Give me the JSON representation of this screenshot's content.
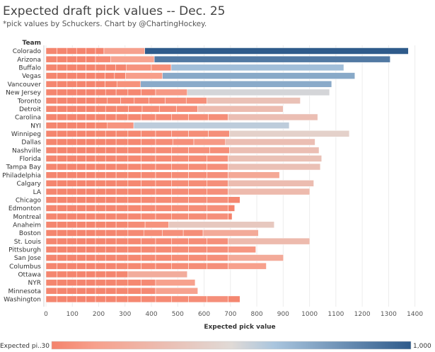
{
  "title": "Expected draft pick values -- Dec. 25",
  "subtitle": "*pick values by Schuckers. Chart by @ChartingHockey.",
  "chart_data": {
    "type": "bar",
    "orientation": "horizontal",
    "stacked": true,
    "row_header": "Team",
    "xlabel": "Expected pick value",
    "xlim": [
      0,
      1450
    ],
    "xticks": [
      0,
      100,
      200,
      300,
      400,
      500,
      600,
      700,
      800,
      900,
      1000,
      1100,
      1200,
      1300,
      1400
    ],
    "grid": true,
    "color_legend": {
      "label": "Expected pi..",
      "min_label": "30",
      "max_label": "1,000",
      "min": 30,
      "max": 1000,
      "colors": [
        "#f4836c",
        "#ddd8d5",
        "#2f5b8b"
      ]
    },
    "teams": [
      {
        "name": "Colorado",
        "segments": [
          42,
          38,
          36,
          36,
          36,
          32,
          155,
          1000
        ]
      },
      {
        "name": "Arizona",
        "segments": [
          42,
          38,
          36,
          36,
          36,
          58,
          165,
          895
        ]
      },
      {
        "name": "Buffalo",
        "segments": [
          42,
          38,
          36,
          36,
          36,
          38,
          38,
          40,
          96,
          75,
          655
        ]
      },
      {
        "name": "Vegas",
        "segments": [
          42,
          38,
          36,
          36,
          36,
          36,
          36,
          42,
          140,
          730
        ]
      },
      {
        "name": "Vancouver",
        "segments": [
          42,
          38,
          36,
          36,
          36,
          36,
          45,
          90,
          725
        ]
      },
      {
        "name": "New Jersey",
        "segments": [
          42,
          38,
          36,
          36,
          36,
          38,
          40,
          45,
          50,
          55,
          120,
          540
        ]
      },
      {
        "name": "Toronto",
        "segments": [
          42,
          38,
          36,
          36,
          36,
          45,
          50,
          52,
          55,
          62,
          80,
          78,
          355
        ]
      },
      {
        "name": "Detroit",
        "segments": [
          42,
          38,
          36,
          36,
          36,
          38,
          42,
          45,
          52,
          65,
          65,
          80,
          325
        ]
      },
      {
        "name": "Carolina",
        "segments": [
          42,
          38,
          36,
          36,
          36,
          38,
          40,
          45,
          50,
          55,
          60,
          65,
          75,
          75,
          340
        ]
      },
      {
        "name": "NYI",
        "segments": [
          42,
          38,
          36,
          36,
          36,
          45,
          100,
          590
        ]
      },
      {
        "name": "Winnipeg",
        "segments": [
          42,
          38,
          36,
          36,
          36,
          38,
          40,
          45,
          50,
          55,
          60,
          65,
          75,
          80,
          455
        ]
      },
      {
        "name": "Dallas",
        "segments": [
          42,
          38,
          36,
          36,
          36,
          38,
          40,
          45,
          50,
          55,
          65,
          80,
          120,
          340
        ]
      },
      {
        "name": "Nashville",
        "segments": [
          42,
          38,
          36,
          36,
          36,
          38,
          40,
          45,
          50,
          55,
          60,
          65,
          80,
          75,
          340
        ]
      },
      {
        "name": "Florida",
        "segments": [
          42,
          38,
          36,
          36,
          36,
          38,
          40,
          45,
          50,
          55,
          60,
          65,
          70,
          80,
          355
        ]
      },
      {
        "name": "Tampa Bay",
        "segments": [
          42,
          38,
          36,
          36,
          36,
          38,
          40,
          45,
          50,
          55,
          60,
          65,
          70,
          80,
          350
        ]
      },
      {
        "name": "Philadelphia",
        "segments": [
          42,
          38,
          36,
          36,
          36,
          38,
          40,
          45,
          50,
          55,
          60,
          65,
          70,
          80,
          195
        ]
      },
      {
        "name": "Calgary",
        "segments": [
          42,
          38,
          36,
          36,
          36,
          38,
          40,
          45,
          50,
          55,
          60,
          65,
          70,
          80,
          325
        ]
      },
      {
        "name": "LA",
        "segments": [
          42,
          38,
          36,
          36,
          36,
          38,
          40,
          45,
          50,
          55,
          60,
          65,
          70,
          80,
          310
        ]
      },
      {
        "name": "Chicago",
        "segments": [
          42,
          38,
          36,
          36,
          36,
          38,
          40,
          45,
          50,
          55,
          60,
          65,
          70,
          80,
          45
        ]
      },
      {
        "name": "Edmonton",
        "segments": [
          42,
          38,
          36,
          36,
          36,
          38,
          40,
          45,
          50,
          55,
          60,
          65,
          70,
          80,
          25
        ]
      },
      {
        "name": "Montreal",
        "segments": [
          42,
          38,
          36,
          36,
          36,
          38,
          40,
          45,
          50,
          55,
          60,
          65,
          70,
          80,
          15
        ]
      },
      {
        "name": "Anaheim",
        "segments": [
          42,
          38,
          36,
          36,
          36,
          38,
          40,
          45,
          65,
          90,
          400
        ]
      },
      {
        "name": "Boston",
        "segments": [
          42,
          38,
          36,
          36,
          36,
          38,
          40,
          45,
          60,
          70,
          80,
          75,
          210
        ]
      },
      {
        "name": "St. Louis",
        "segments": [
          42,
          38,
          36,
          36,
          36,
          38,
          40,
          45,
          50,
          55,
          60,
          65,
          70,
          80,
          310
        ]
      },
      {
        "name": "Pittsburgh",
        "segments": [
          42,
          38,
          36,
          36,
          36,
          38,
          40,
          45,
          50,
          55,
          60,
          65,
          70,
          80,
          105
        ]
      },
      {
        "name": "San Jose",
        "segments": [
          42,
          38,
          36,
          36,
          36,
          38,
          40,
          45,
          50,
          55,
          60,
          65,
          70,
          80,
          210
        ]
      },
      {
        "name": "Columbus",
        "segments": [
          42,
          38,
          36,
          36,
          36,
          38,
          40,
          45,
          50,
          55,
          60,
          65,
          70,
          80,
          145
        ]
      },
      {
        "name": "Ottawa",
        "segments": [
          42,
          38,
          36,
          36,
          36,
          38,
          40,
          45,
          225
        ]
      },
      {
        "name": "NYR",
        "segments": [
          42,
          38,
          36,
          36,
          36,
          38,
          40,
          45,
          50,
          55,
          150
        ]
      },
      {
        "name": "Minnesota",
        "segments": [
          42,
          38,
          36,
          36,
          36,
          38,
          40,
          45,
          50,
          55,
          160
        ]
      },
      {
        "name": "Washington",
        "segments": [
          42,
          38,
          36,
          36,
          36,
          38,
          40,
          45,
          50,
          55,
          60,
          65,
          70,
          80,
          45
        ]
      }
    ]
  }
}
